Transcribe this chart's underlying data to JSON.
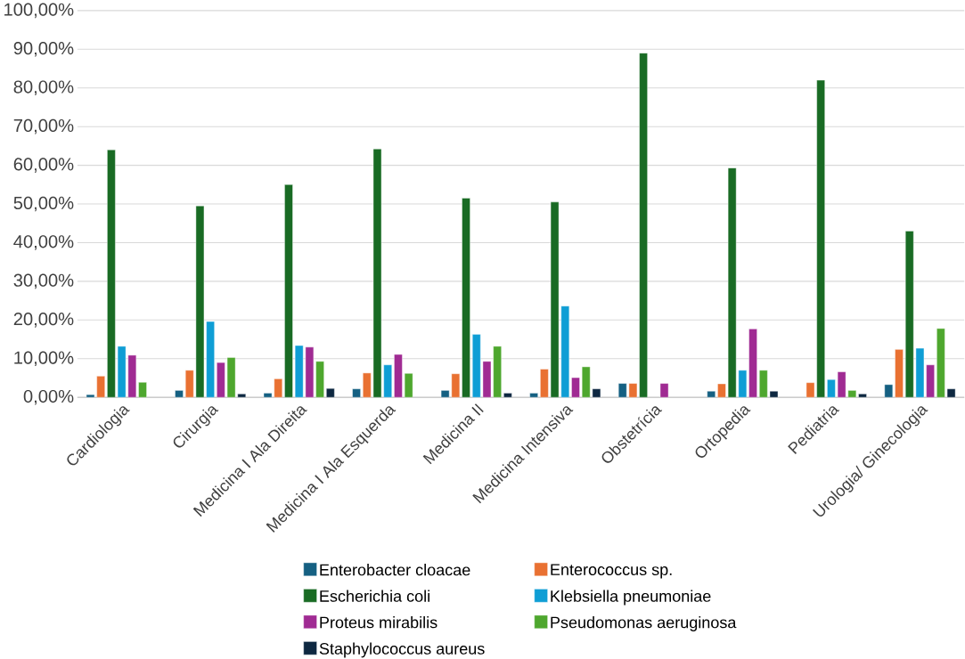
{
  "chart_data": {
    "type": "bar",
    "categories": [
      "Cardiologia",
      "Cirurgia",
      "Medicina I Ala Direita",
      "Medicina I Ala Esquerda",
      "Medicina II",
      "Medicina Intensiva",
      "Obstetrícia",
      "Ortopedia",
      "Pediatria",
      "Urologia/ Ginecologia"
    ],
    "series": [
      {
        "name": "Enterobacter cloacae",
        "color": "#156082",
        "values": [
          0.7,
          1.8,
          1.1,
          2.2,
          1.8,
          1.1,
          3.6,
          1.6,
          null,
          3.3
        ]
      },
      {
        "name": "Enterococcus sp.",
        "color": "#e97132",
        "values": [
          5.5,
          7.0,
          4.8,
          6.3,
          6.1,
          7.3,
          3.6,
          3.5,
          3.8,
          12.4
        ]
      },
      {
        "name": "Escherichia coli",
        "color": "#196b24",
        "values": [
          64.0,
          49.5,
          55.0,
          64.2,
          51.5,
          50.5,
          89.0,
          59.3,
          82.0,
          43.0
        ]
      },
      {
        "name": "Klebsiella pneumoniae",
        "color": "#0f9ed5",
        "values": [
          13.2,
          19.6,
          13.4,
          8.4,
          16.3,
          23.6,
          null,
          7.0,
          4.6,
          12.7
        ]
      },
      {
        "name": "Proteus mirabilis",
        "color": "#a02b93",
        "values": [
          10.9,
          9.0,
          13.0,
          11.1,
          9.3,
          5.1,
          3.6,
          17.7,
          6.6,
          8.4
        ]
      },
      {
        "name": "Pseudomonas aeruginosa",
        "color": "#4ea72e",
        "values": [
          3.9,
          10.3,
          9.3,
          6.2,
          13.2,
          7.9,
          null,
          7.0,
          1.8,
          17.8
        ]
      },
      {
        "name": "Staphylococcus aureus",
        "color": "#0e2841",
        "values": [
          null,
          0.9,
          2.3,
          null,
          1.1,
          2.2,
          null,
          1.6,
          0.9,
          2.2
        ]
      }
    ],
    "ylim": [
      0,
      100
    ],
    "yticks": [
      {
        "value": 0,
        "label": "0,00%"
      },
      {
        "value": 10,
        "label": "10,00%"
      },
      {
        "value": 20,
        "label": "20,00%"
      },
      {
        "value": 30,
        "label": "30,00%"
      },
      {
        "value": 40,
        "label": "40,00%"
      },
      {
        "value": 50,
        "label": "50,00%"
      },
      {
        "value": 60,
        "label": "60,00%"
      },
      {
        "value": 70,
        "label": "70,00%"
      },
      {
        "value": 80,
        "label": "80,00%"
      },
      {
        "value": 90,
        "label": "90,00%"
      },
      {
        "value": 100,
        "label": "100,00%"
      }
    ],
    "grid": "y",
    "legend": "bottom"
  }
}
